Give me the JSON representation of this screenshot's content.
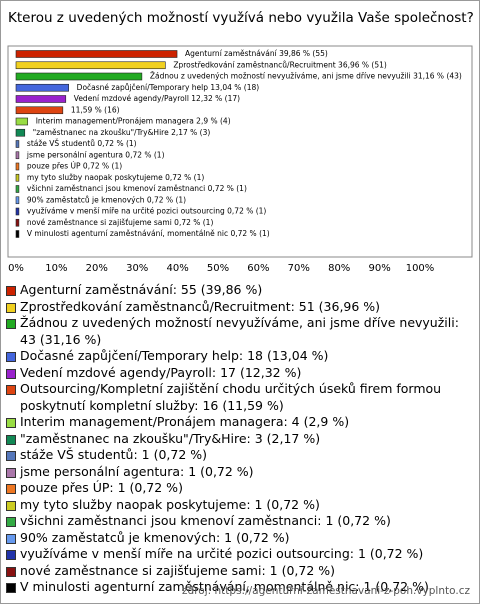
{
  "chart_data": {
    "type": "bar",
    "title": "Kterou z uvedených možností využívá nebo využila Vaše společnost?",
    "values": [
      39.86,
      36.96,
      31.16,
      13.04,
      12.32,
      11.59,
      2.9,
      2.17,
      0.72,
      0.72,
      0.72,
      0.72,
      0.72,
      0.72,
      0.72,
      0.72,
      0.72
    ],
    "value_labels": [
      "Agenturní zaměstnávání 39,86 % (55)",
      "Zprostředkování zaměstnanců/Recruitment 36,96 % (51)",
      "Žádnou z uvedených možností nevyužíváme, ani jsme dříve nevyužili 31,16 % (43)",
      "Dočasné zapůjčení/Temporary help 13,04 % (18)",
      "Vedení mzdové agendy/Payroll 12,32 % (17)",
      "11,59 % (16)",
      "Interim management/Pronájem managera 2,9 % (4)",
      "\"zaměstnanec na zkoušku\"/Try&Hire 2,17 % (3)",
      "stáže VŠ studentů 0,72 % (1)",
      "jsme personální agentura 0,72 % (1)",
      "pouze přes ÚP 0,72 % (1)",
      "my tyto služby naopak poskytujeme 0,72 % (1)",
      "všichni zaměstnanci jsou kmenoví zaměstnanci 0,72 % (1)",
      "90% zaměstatců je kmenových 0,72 % (1)",
      "využíváme v menší míře na určité pozici outsourcing 0,72 % (1)",
      "nové zaměstnance si zajišťujeme sami 0,72 % (1)",
      "V minulosti agenturní zaměstnávání, momentálně nic 0,72 % (1)"
    ],
    "legend_labels": [
      "Agenturní zaměstnávání: 55 (39,86 %)",
      "Zprostředkování zaměstnanců/Recruitment: 51 (36,96 %)",
      "Žádnou z uvedených možností nevyužíváme, ani jsme dříve nevyužili: 43 (31,16 %)",
      "Dočasné zapůjčení/Temporary help: 18 (13,04 %)",
      "Vedení mzdové agendy/Payroll: 17 (12,32 %)",
      "Outsourcing/Kompletní zajištění chodu určitých úseků firem formou poskytnutí kompletní služby: 16 (11,59 %)",
      "Interim management/Pronájem managera: 4 (2,9 %)",
      "\"zaměstnanec na zkoušku\"/Try&Hire: 3 (2,17 %)",
      "stáže VŠ studentů: 1 (0,72 %)",
      "jsme personální agentura: 1 (0,72 %)",
      "pouze přes ÚP: 1 (0,72 %)",
      "my tyto služby naopak poskytujeme: 1 (0,72 %)",
      "všichni zaměstnanci jsou kmenoví zaměstnanci: 1 (0,72 %)",
      "90% zaměstatců je kmenových: 1 (0,72 %)",
      "využíváme v menší míře na určité pozici outsourcing: 1 (0,72 %)",
      "nové zaměstnance si zajišťujeme sami: 1 (0,72 %)",
      "V minulosti agenturní zaměstnávání, momentálně nic: 1 (0,72 %)"
    ],
    "colors": [
      "#cc2200",
      "#f0d020",
      "#22aa22",
      "#4466dd",
      "#9922cc",
      "#dd4411",
      "#99dd44",
      "#118855",
      "#5577bb",
      "#aa77aa",
      "#ee7722",
      "#cccc22",
      "#33aa44",
      "#6699ee",
      "#2233aa",
      "#881111",
      "#000000"
    ],
    "xlim": [
      0,
      100
    ],
    "xticks": [
      {
        "value": 0,
        "label": "0%"
      },
      {
        "value": 10,
        "label": "10%"
      },
      {
        "value": 20,
        "label": "20%"
      },
      {
        "value": 30,
        "label": "30%"
      },
      {
        "value": 40,
        "label": "40%"
      },
      {
        "value": 50,
        "label": "50%"
      },
      {
        "value": 60,
        "label": "60%"
      },
      {
        "value": 70,
        "label": "70%"
      },
      {
        "value": 80,
        "label": "80%"
      },
      {
        "value": 90,
        "label": "90%"
      },
      {
        "value": 100,
        "label": "100%"
      }
    ],
    "source": "zdroj: https://agenturni-zamestnavani-z-poh.vyplnto.cz"
  }
}
